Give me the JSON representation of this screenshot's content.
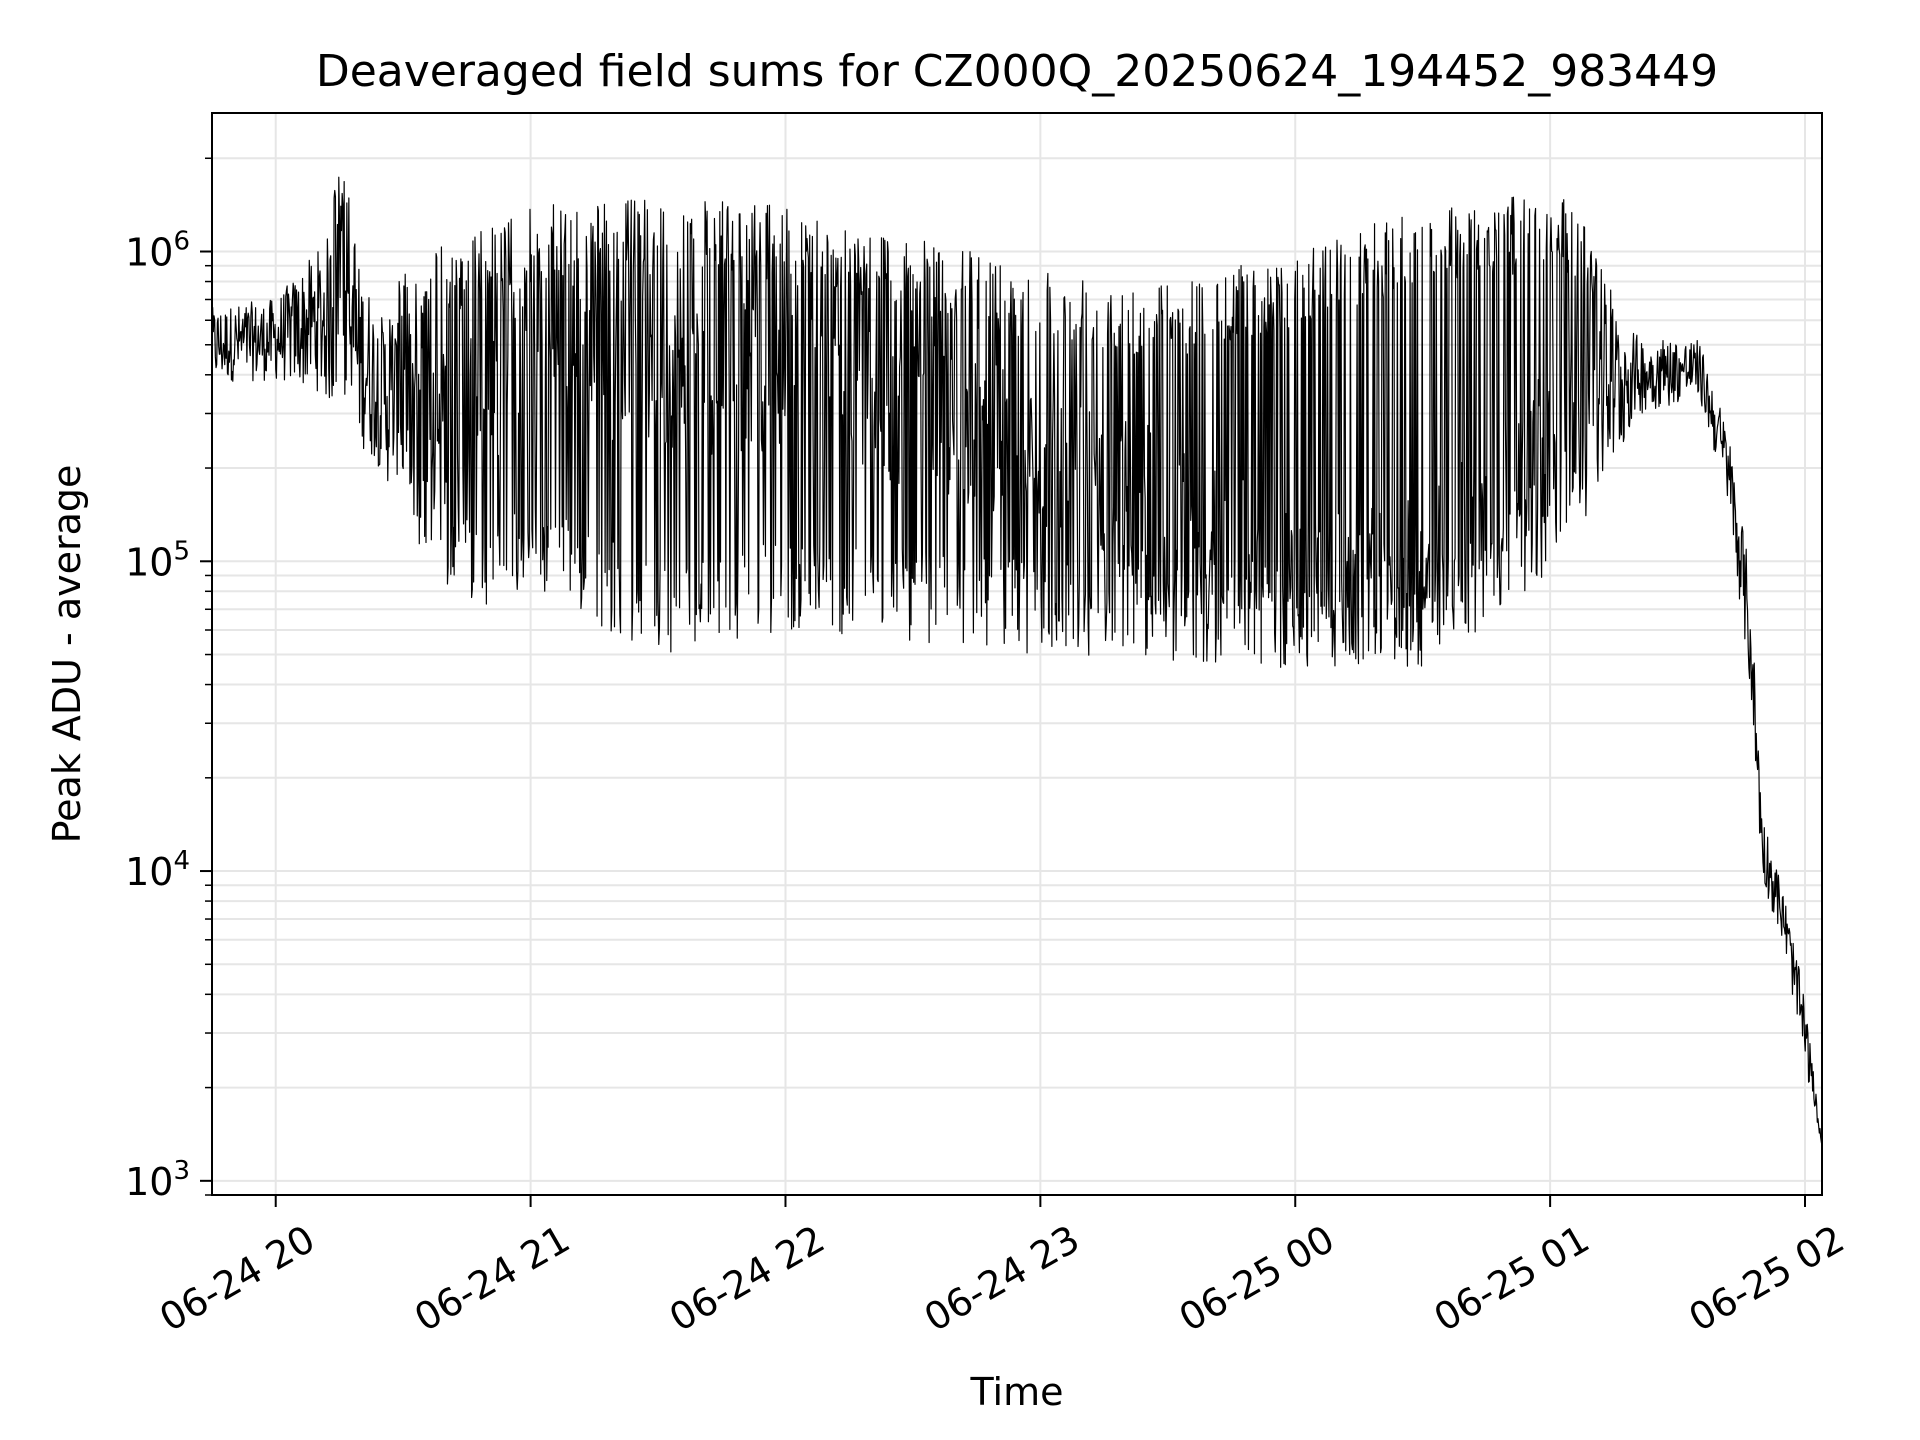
{
  "chart_data": {
    "type": "line",
    "title": "Deaveraged field sums for CZ000Q_20250624_194452_983449",
    "xlabel": "Time",
    "ylabel": "Peak ADU - average",
    "yscale": "log",
    "ylim": [
      900,
      2800000
    ],
    "xlim": [
      "2025-06-24 19:45",
      "2025-06-25 02:04"
    ],
    "grid": true,
    "line_color": "#000000",
    "grid_color": "#e6e6e6",
    "x_ticks": [
      {
        "t": "2025-06-24 20:00",
        "label": "06-24 20"
      },
      {
        "t": "2025-06-24 21:00",
        "label": "06-24 21"
      },
      {
        "t": "2025-06-24 22:00",
        "label": "06-24 22"
      },
      {
        "t": "2025-06-24 23:00",
        "label": "06-24 23"
      },
      {
        "t": "2025-06-25 00:00",
        "label": "06-25 00"
      },
      {
        "t": "2025-06-25 01:00",
        "label": "06-25 01"
      },
      {
        "t": "2025-06-25 02:00",
        "label": "06-25 02"
      }
    ],
    "y_ticks": [
      {
        "value": 1000,
        "base": "10",
        "exp": "3"
      },
      {
        "value": 10000,
        "base": "10",
        "exp": "4"
      },
      {
        "value": 100000,
        "base": "10",
        "exp": "5"
      },
      {
        "value": 1000000,
        "base": "10",
        "exp": "6"
      }
    ],
    "series_profile": [
      {
        "t": "2025-06-24 19:45",
        "y": 500000,
        "lo": 430000,
        "hi": 750000
      },
      {
        "t": "2025-06-24 20:00",
        "y": 520000,
        "lo": 380000,
        "hi": 700000
      },
      {
        "t": "2025-06-24 20:10",
        "y": 600000,
        "lo": 450000,
        "hi": 1300000
      },
      {
        "t": "2025-06-24 20:15",
        "y": 600000,
        "lo": 420000,
        "hi": 1900000
      },
      {
        "t": "2025-06-24 20:25",
        "y": 350000,
        "lo": 250000,
        "hi": 800000
      },
      {
        "t": "2025-06-24 20:35",
        "y": 300000,
        "lo": 90000,
        "hi": 1000000
      },
      {
        "t": "2025-06-24 20:50",
        "y": 350000,
        "lo": 70000,
        "hi": 1200000
      },
      {
        "t": "2025-06-24 21:00",
        "y": 500000,
        "lo": 80000,
        "hi": 1400000
      },
      {
        "t": "2025-06-24 21:30",
        "y": 400000,
        "lo": 50000,
        "hi": 1500000
      },
      {
        "t": "2025-06-24 22:00",
        "y": 380000,
        "lo": 60000,
        "hi": 1400000
      },
      {
        "t": "2025-06-24 22:30",
        "y": 300000,
        "lo": 55000,
        "hi": 1100000
      },
      {
        "t": "2025-06-24 23:00",
        "y": 220000,
        "lo": 50000,
        "hi": 900000
      },
      {
        "t": "2025-06-24 23:30",
        "y": 150000,
        "lo": 48000,
        "hi": 800000
      },
      {
        "t": "2025-06-25 00:00",
        "y": 80000,
        "lo": 45000,
        "hi": 1000000
      },
      {
        "t": "2025-06-25 00:30",
        "y": 90000,
        "lo": 45000,
        "hi": 1400000
      },
      {
        "t": "2025-06-25 00:50",
        "y": 180000,
        "lo": 70000,
        "hi": 1500000
      },
      {
        "t": "2025-06-25 01:05",
        "y": 300000,
        "lo": 100000,
        "hi": 1500000
      },
      {
        "t": "2025-06-25 01:20",
        "y": 400000,
        "lo": 300000,
        "hi": 550000
      },
      {
        "t": "2025-06-25 01:35",
        "y": 420000,
        "lo": 380000,
        "hi": 580000
      },
      {
        "t": "2025-06-25 01:42",
        "y": 200000,
        "lo": 150000,
        "hi": 260000
      },
      {
        "t": "2025-06-25 01:47",
        "y": 60000,
        "lo": 40000,
        "hi": 95000
      },
      {
        "t": "2025-06-25 01:50",
        "y": 12000,
        "lo": 9000,
        "hi": 15000
      },
      {
        "t": "2025-06-25 01:55",
        "y": 7000,
        "lo": 6000,
        "hi": 9000
      },
      {
        "t": "2025-06-25 02:00",
        "y": 3000,
        "lo": 2300,
        "hi": 3800
      },
      {
        "t": "2025-06-25 02:04",
        "y": 1300,
        "lo": 1300,
        "hi": 1300
      }
    ]
  }
}
